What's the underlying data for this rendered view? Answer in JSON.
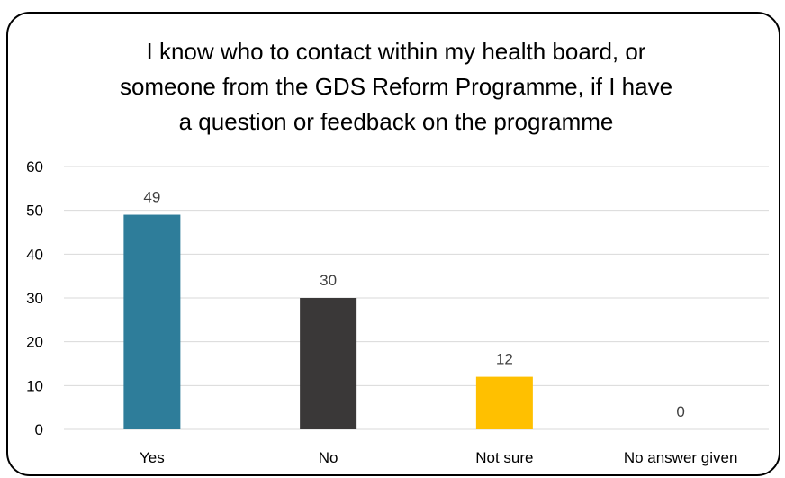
{
  "chart_data": {
    "type": "bar",
    "title_lines": [
      "I know who to contact within my health board, or",
      "someone from the GDS Reform Programme, if I have",
      "a question or feedback on the programme"
    ],
    "categories": [
      "Yes",
      "No",
      "Not sure",
      "No answer given"
    ],
    "values": [
      49,
      30,
      12,
      0
    ],
    "data_labels": [
      "49",
      "30",
      "12",
      "0"
    ],
    "colors": [
      "#2e7d9a",
      "#3a3838",
      "#ffc000",
      "#7f7f7f"
    ],
    "ylim": [
      0,
      60
    ],
    "yticks": [
      0,
      10,
      20,
      30,
      40,
      50,
      60
    ],
    "grid": true,
    "legend": "none"
  }
}
